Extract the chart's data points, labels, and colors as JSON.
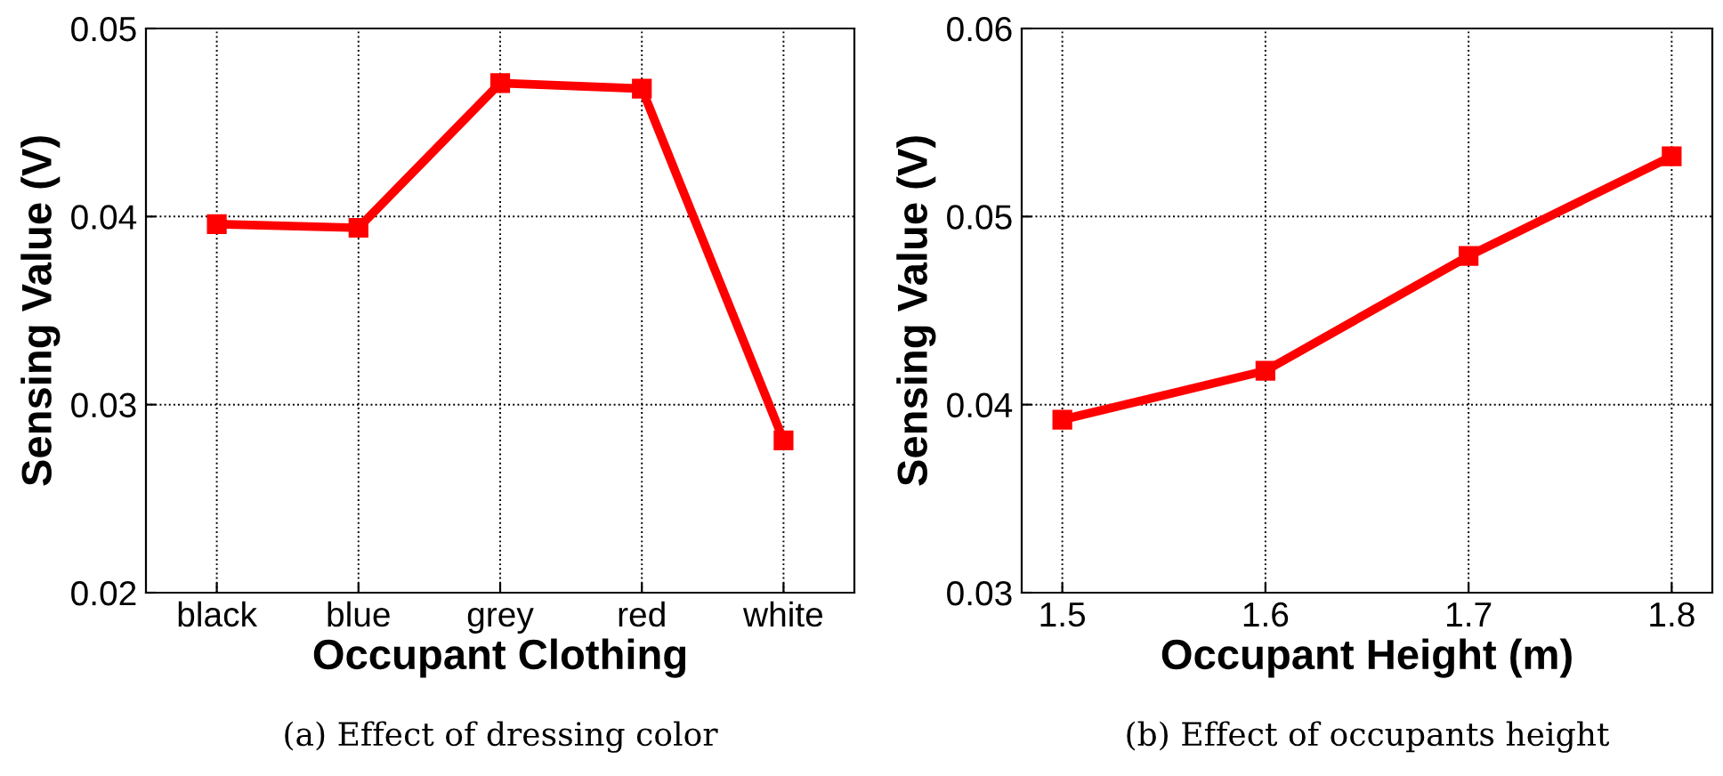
{
  "chart_data": [
    {
      "type": "line",
      "xlabel": "Occupant Clothing",
      "ylabel": "Sensing Value (V)",
      "categories": [
        "black",
        "blue",
        "grey",
        "red",
        "white"
      ],
      "series": [
        {
          "color": "#ff0000",
          "values": [
            0.0396,
            0.0394,
            0.0471,
            0.0468,
            0.0281
          ]
        }
      ],
      "ylim": [
        0.02,
        0.05
      ],
      "yticks": [
        0.02,
        0.03,
        0.04,
        0.05
      ],
      "grid": true,
      "marker": "square",
      "line_style": "solid",
      "legend": false,
      "annotations": [
        "(a) Effect of dressing color"
      ]
    },
    {
      "type": "line",
      "xlabel": "Occupant Height (m)",
      "ylabel": "Sensing Value (V)",
      "x": [
        1.5,
        1.6,
        1.7,
        1.8
      ],
      "series": [
        {
          "color": "#ff0000",
          "values": [
            0.0392,
            0.0418,
            0.0479,
            0.0532
          ]
        }
      ],
      "xlim": [
        1.48,
        1.82
      ],
      "xticks": [
        1.5,
        1.6,
        1.7,
        1.8
      ],
      "ylim": [
        0.03,
        0.06
      ],
      "yticks": [
        0.03,
        0.04,
        0.05,
        0.06
      ],
      "grid": true,
      "marker": "square",
      "line_style": "solid",
      "legend": false,
      "annotations": [
        "(b) Effect of occupants height"
      ]
    }
  ]
}
